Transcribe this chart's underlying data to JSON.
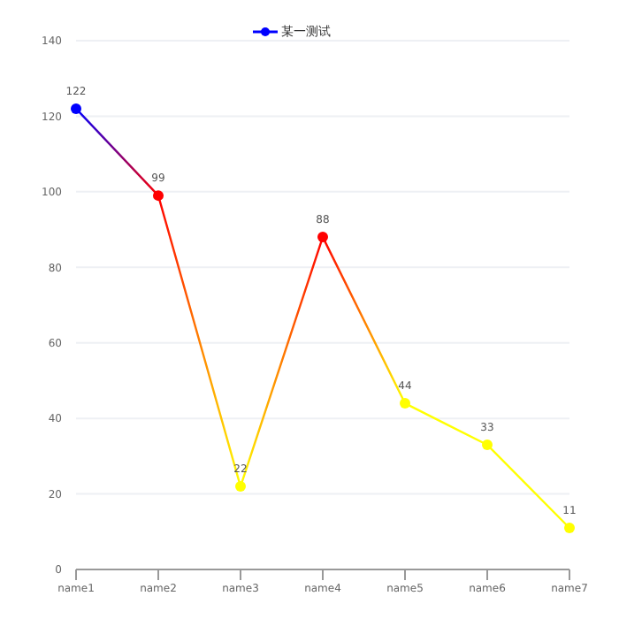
{
  "chart_data": {
    "type": "line",
    "categories": [
      "name1",
      "name2",
      "name3",
      "name4",
      "name5",
      "name6",
      "name7"
    ],
    "series": [
      {
        "name": "某一测试",
        "color": "#0000ff",
        "colors": [
          "#0000ff",
          "#ff0000",
          "#ffff00",
          "#ff0000",
          "#ffff00",
          "#ffff00",
          "#ffff00"
        ],
        "values": [
          122,
          99,
          22,
          88,
          44,
          33,
          11
        ]
      }
    ],
    "ylim": [
      0,
      140
    ],
    "yticks": [
      0,
      20,
      40,
      60,
      80,
      100,
      120,
      140
    ],
    "grid": "y",
    "legend": "top",
    "marker": "circle",
    "data_labels": true
  }
}
